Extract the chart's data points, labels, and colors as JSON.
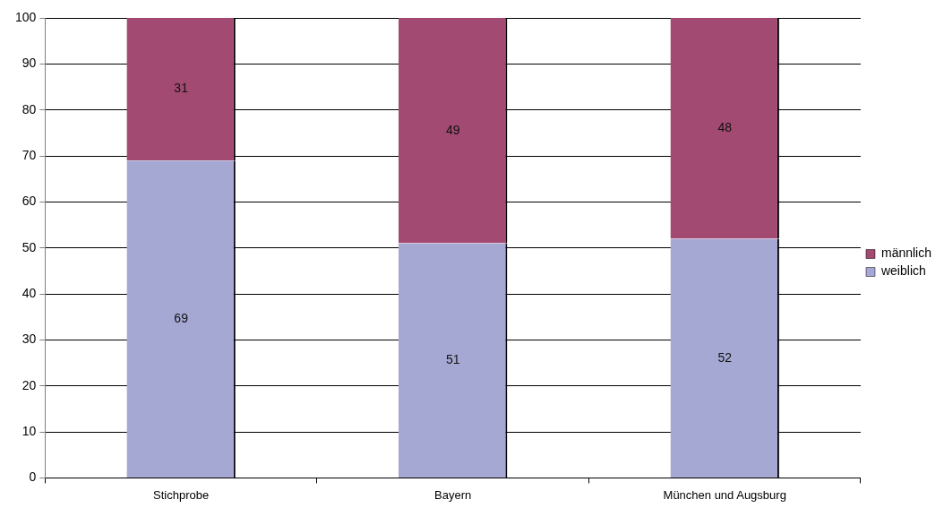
{
  "chart_data": {
    "type": "bar",
    "stacked": true,
    "categories": [
      "Stichprobe",
      "Bayern",
      "München und Augsburg"
    ],
    "series": [
      {
        "name": "weiblich",
        "color": "#a6a8d4",
        "values": [
          69,
          51,
          52
        ]
      },
      {
        "name": "männlich",
        "color": "#a34a73",
        "values": [
          31,
          49,
          48
        ]
      }
    ],
    "ylim": [
      0,
      100
    ],
    "yticks": [
      0,
      10,
      20,
      30,
      40,
      50,
      60,
      70,
      80,
      90,
      100
    ],
    "grid": "y",
    "legend": "right",
    "data_labels": true
  }
}
